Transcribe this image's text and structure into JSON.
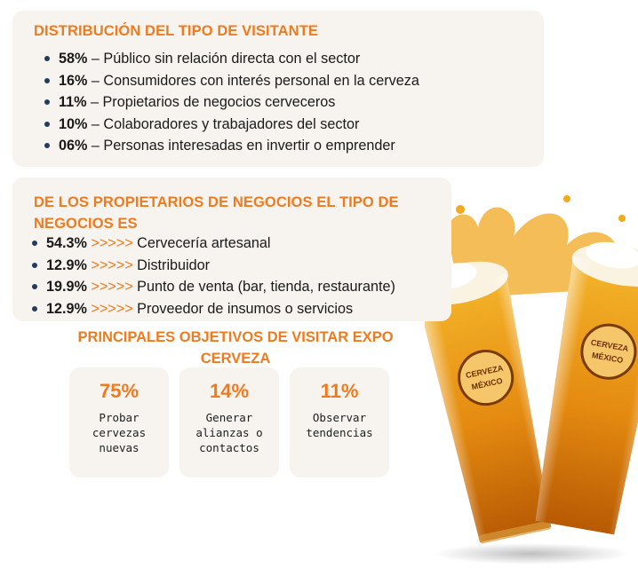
{
  "visitor_card": {
    "title": "DISTRIBUCIÓN DEL TIPO DE VISITANTE",
    "items": [
      {
        "pct": "58%",
        "text": " – Público sin relación directa con el sector"
      },
      {
        "pct": "16%",
        "text": " – Consumidores con interés personal en la cerveza"
      },
      {
        "pct": "11%",
        "text": " – Propietarios de negocios cerveceros"
      },
      {
        "pct": "10%",
        "text": " – Colaboradores y trabajadores del sector"
      },
      {
        "pct": "06%",
        "text": " – Personas interesadas en invertir o emprender"
      }
    ]
  },
  "owners_card": {
    "title": "DE LOS PROPIETARIOS DE NEGOCIOS EL TIPO DE NEGOCIOS ES",
    "arrows": " >>>>> ",
    "items": [
      {
        "pct": "54.3%",
        "text": "Cervecería artesanal"
      },
      {
        "pct": "12.9%",
        "text": "Distribuidor"
      },
      {
        "pct": "19.9%",
        "text": "Punto de venta (bar, tienda, restaurante)"
      },
      {
        "pct": "12.9%",
        "text": "Proveedor de insumos o servicios"
      }
    ]
  },
  "objectives": {
    "title": "PRINCIPALES OBJETIVOS DE VISITAR EXPO CERVEZA",
    "goals": [
      {
        "pct": "75%",
        "label": "Probar cervezas nuevas"
      },
      {
        "pct": "14%",
        "label": "Generar alianzas o contactos"
      },
      {
        "pct": "11%",
        "label": "Observar tendencias"
      }
    ]
  },
  "beer_image": {
    "logo_line1": "CERVEZA",
    "logo_line2": "MÉXICO"
  },
  "colors": {
    "accent": "#f07a1e",
    "bullet": "#243a5e",
    "card_bg": "#f7f4ef"
  }
}
